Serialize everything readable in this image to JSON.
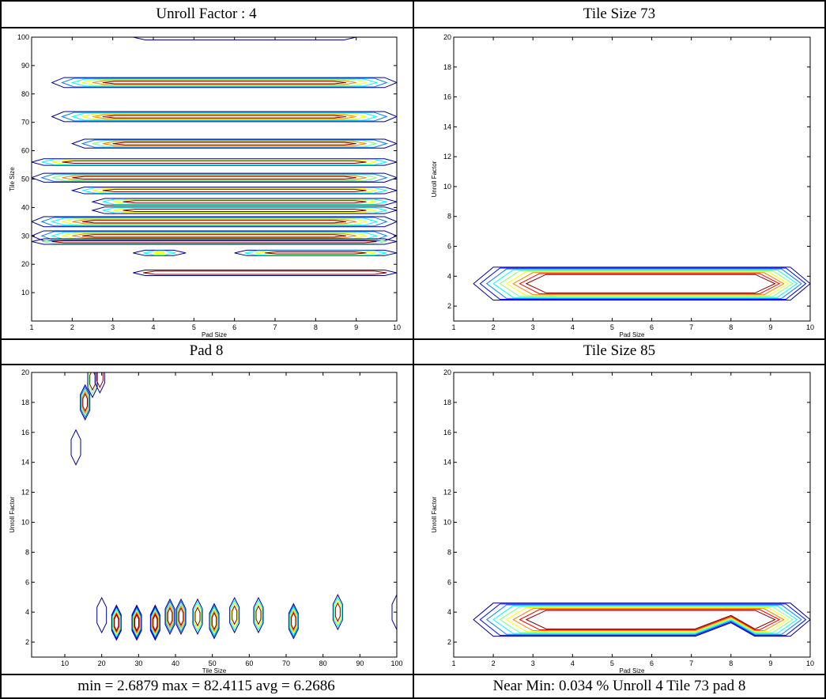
{
  "captions": {
    "top_left": "Unroll Factor : 4",
    "top_right": "Tile Size 73",
    "mid_left": "Pad 8",
    "mid_right": "Tile Size 85",
    "bottom_left": "min = 2.6879 max = 82.4115 avg = 6.2686",
    "bottom_right": "Near Min: 0.034 % Unroll 4 Tile 73 pad 8"
  },
  "colors": [
    "#00008f",
    "#0000ff",
    "#0080ff",
    "#00ffff",
    "#80ff80",
    "#ffff00",
    "#ff8000",
    "#ff0000",
    "#800000"
  ],
  "chart_data": [
    {
      "type": "contour",
      "xlabel": "Pad Size",
      "ylabel": "Tile Size",
      "xlim": [
        1,
        10
      ],
      "ylim": [
        0,
        100
      ],
      "xticks": [
        1,
        2,
        3,
        4,
        5,
        6,
        7,
        8,
        9,
        10
      ],
      "yticks": [
        10,
        20,
        30,
        40,
        50,
        60,
        70,
        80,
        90,
        100
      ],
      "bands": [
        {
          "y": 84,
          "x": [
            1.5,
            10
          ],
          "half": 1.6,
          "levels": 6
        },
        {
          "y": 72,
          "x": [
            1.5,
            10
          ],
          "half": 1.6,
          "levels": 6
        },
        {
          "y": 62.5,
          "x": [
            2,
            10
          ],
          "half": 1.4,
          "levels": 5
        },
        {
          "y": 56,
          "x": [
            1,
            10
          ],
          "half": 1.0,
          "levels": 4
        },
        {
          "y": 50.5,
          "x": [
            1,
            10
          ],
          "half": 1.4,
          "levels": 5
        },
        {
          "y": 46,
          "x": [
            2,
            10
          ],
          "half": 1.0,
          "levels": 4
        },
        {
          "y": 42,
          "x": [
            2.5,
            10
          ],
          "half": 1.0,
          "levels": 4
        },
        {
          "y": 39,
          "x": [
            2.5,
            10
          ],
          "half": 1.0,
          "levels": 4
        },
        {
          "y": 35,
          "x": [
            1,
            10
          ],
          "half": 1.6,
          "levels": 6
        },
        {
          "y": 30,
          "x": [
            1,
            10
          ],
          "half": 1.6,
          "levels": 6
        },
        {
          "y": 28,
          "x": [
            1,
            10
          ],
          "half": 0.8,
          "levels": 3
        },
        {
          "y": 24,
          "x": [
            3.5,
            4.8
          ],
          "half": 0.8,
          "levels": 4
        },
        {
          "y": 24,
          "x": [
            6,
            10
          ],
          "half": 0.8,
          "levels": 4
        },
        {
          "y": 17,
          "x": [
            3.5,
            10
          ],
          "half": 0.8,
          "levels": 2
        },
        {
          "y": 100,
          "x": [
            3.5,
            9
          ],
          "half": 0.8,
          "levels": 1
        }
      ]
    },
    {
      "type": "contour",
      "xlabel": "Pad Size",
      "ylabel": "Unroll Factor",
      "xlim": [
        1,
        10
      ],
      "ylim": [
        1,
        20
      ],
      "xticks": [
        1,
        2,
        3,
        4,
        5,
        6,
        7,
        8,
        9,
        10
      ],
      "yticks": [
        2,
        4,
        6,
        8,
        10,
        12,
        14,
        16,
        18,
        20
      ],
      "peak": {
        "x": [
          3,
          9
        ],
        "y": 3.5,
        "levels": 9
      }
    },
    {
      "type": "contour",
      "xlabel": "Tile Size",
      "ylabel": "Unroll Factor",
      "xlim": [
        1,
        100
      ],
      "ylim": [
        1,
        20
      ],
      "xticks": [
        10,
        20,
        30,
        40,
        50,
        60,
        70,
        80,
        90,
        100
      ],
      "yticks": [
        2,
        4,
        6,
        8,
        10,
        12,
        14,
        16,
        18,
        20
      ],
      "blobs": [
        {
          "x": 13,
          "y": 15,
          "levels": 1
        },
        {
          "x": 15.5,
          "y": 18,
          "levels": 5
        },
        {
          "x": 17.5,
          "y": 19.5,
          "levels": 3
        },
        {
          "x": 19.5,
          "y": 19.8,
          "levels": 2
        },
        {
          "x": 20,
          "y": 3.8,
          "levels": 1
        },
        {
          "x": 24,
          "y": 3.3,
          "levels": 7
        },
        {
          "x": 29.5,
          "y": 3.3,
          "levels": 8
        },
        {
          "x": 34.5,
          "y": 3.3,
          "levels": 8
        },
        {
          "x": 38.5,
          "y": 3.7,
          "levels": 5
        },
        {
          "x": 41.5,
          "y": 3.7,
          "levels": 5
        },
        {
          "x": 46,
          "y": 3.7,
          "levels": 4
        },
        {
          "x": 50.5,
          "y": 3.4,
          "levels": 6
        },
        {
          "x": 56,
          "y": 3.8,
          "levels": 4
        },
        {
          "x": 62.5,
          "y": 3.8,
          "levels": 4
        },
        {
          "x": 72,
          "y": 3.4,
          "levels": 6
        },
        {
          "x": 84,
          "y": 4,
          "levels": 4
        },
        {
          "x": 100,
          "y": 4,
          "levels": 1
        }
      ]
    },
    {
      "type": "contour",
      "xlabel": "Pad Size",
      "ylabel": "Unroll Factor",
      "xlim": [
        1,
        10
      ],
      "ylim": [
        1,
        20
      ],
      "xticks": [
        1,
        2,
        3,
        4,
        5,
        6,
        7,
        8,
        9,
        10
      ],
      "yticks": [
        2,
        4,
        6,
        8,
        10,
        12,
        14,
        16,
        18,
        20
      ],
      "peak": {
        "x": [
          3,
          9
        ],
        "y": 3.5,
        "levels": 9,
        "dip": {
          "x": 8,
          "y": 3.0
        }
      }
    }
  ]
}
